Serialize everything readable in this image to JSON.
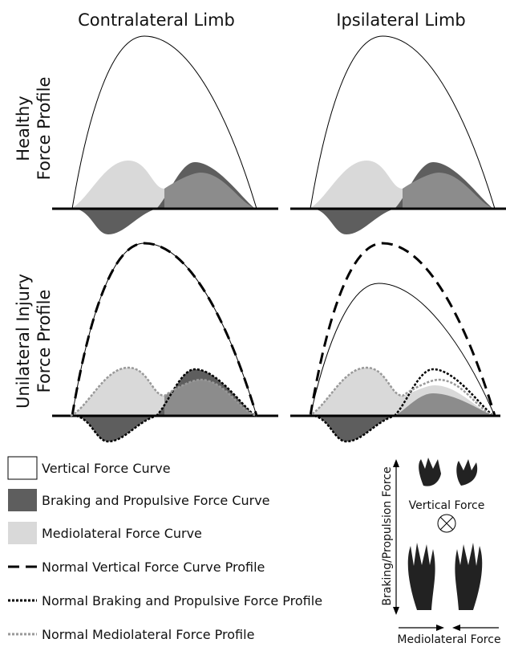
{
  "column_titles": [
    "Contralateral Limb",
    "Ipsilateral Limb"
  ],
  "row_titles": [
    {
      "line1": "Healthy",
      "line2": "Force Profile"
    },
    {
      "line1": "Unilateral Injury",
      "line2": "Force Profile"
    }
  ],
  "legend": [
    "Vertical Force Curve",
    "Braking and Propulsive Force Curve",
    "Mediolateral Force Curve",
    "Normal Vertical Force Curve Profile",
    "Normal Braking and Propulsive Force Profile",
    "Normal Mediolateral Force Profile"
  ],
  "key": {
    "vertical_axis": "Braking/Propulsion Force",
    "vertical_force": "Vertical Force",
    "mediolateral_force": "Mediolateral Force"
  }
}
